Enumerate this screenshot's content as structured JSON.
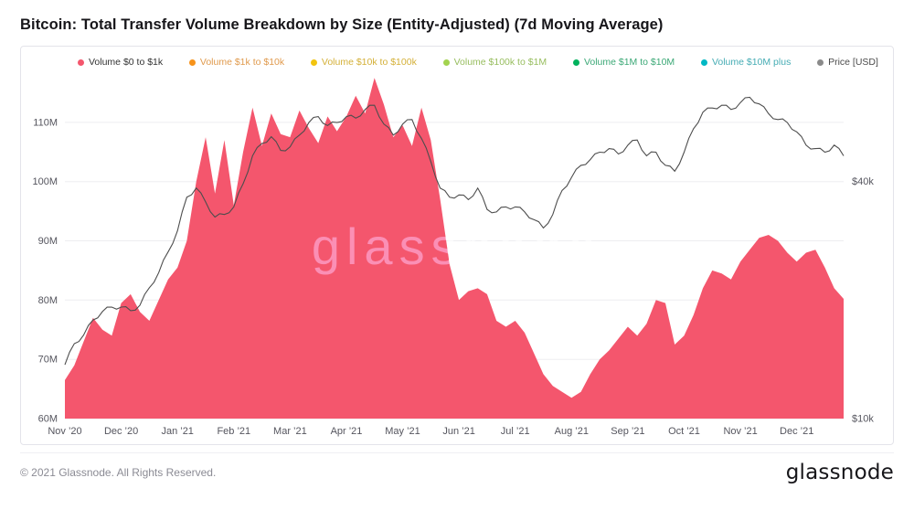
{
  "title": "Bitcoin: Total Transfer Volume Breakdown by Size (Entity-Adjusted) (7d Moving Average)",
  "watermark": "glassnode",
  "footer": {
    "copyright": "© 2021 Glassnode. All Rights Reserved.",
    "logo_text": "glassnode"
  },
  "chart_data": {
    "type": "area",
    "title": "Bitcoin: Total Transfer Volume Breakdown by Size (Entity-Adjusted) (7d Moving Average)",
    "x_range": "Nov 2020 - Dec 2021",
    "points_per_month": 6,
    "x_labels": [
      "Nov ’20",
      "Dec ’20",
      "Jan ’21",
      "Feb ’21",
      "Mar ’21",
      "Apr ’21",
      "May ’21",
      "Jun ’21",
      "Jul ’21",
      "Aug ’21",
      "Sep ’21",
      "Oct ’21",
      "Nov ’21",
      "Dec ’21"
    ],
    "y_axis_left": {
      "unit": "M",
      "min": 60,
      "max": 118,
      "ticks": [
        60,
        70,
        80,
        90,
        100,
        110
      ],
      "grid": true
    },
    "y_axis_right": {
      "label": "Price [USD]",
      "scale": "log",
      "ticks": [
        {
          "label": "$10k",
          "align_value": 60
        },
        {
          "label": "$40k",
          "align_value": 100
        }
      ]
    },
    "legend": [
      {
        "label": "Volume $0 to $1k",
        "color": "#f4566d",
        "text_color": "#333333"
      },
      {
        "label": "Volume $1k to $10k",
        "color": "#f7931a",
        "text_color": "#e09a4d"
      },
      {
        "label": "Volume $10k to $100k",
        "color": "#f2c40f",
        "text_color": "#d4b038"
      },
      {
        "label": "Volume $100k to $1M",
        "color": "#a3d34f",
        "text_color": "#97bd5e"
      },
      {
        "label": "Volume $1M to $10M",
        "color": "#00b25d",
        "text_color": "#3ba876"
      },
      {
        "label": "Volume $10M plus",
        "color": "#00b8c4",
        "text_color": "#45acb4"
      },
      {
        "label": "Price [USD]",
        "color": "#8a8a8a",
        "text_color": "#4a4a4a"
      }
    ],
    "series": [
      {
        "name": "Volume $0 to $1k",
        "type": "area",
        "color": "#f4566d",
        "unit": "M",
        "values": [
          66.5,
          69,
          73,
          77,
          75,
          74,
          79.5,
          81,
          78,
          76.5,
          80,
          83.5,
          85.5,
          90,
          100,
          107.5,
          98,
          107,
          96,
          105,
          112.5,
          106,
          111.5,
          108,
          107.5,
          112,
          109,
          106.5,
          111,
          108.5,
          111,
          114.5,
          111.5,
          117.5,
          113,
          107.5,
          109.5,
          106,
          112.5,
          107,
          97,
          86,
          80,
          81.5,
          82,
          81,
          76.5,
          75.5,
          76.5,
          74.5,
          71,
          67.5,
          65.5,
          64.5,
          63.5,
          64.5,
          67.5,
          70,
          71.5,
          73.5,
          75.5,
          74,
          76,
          80,
          79.5,
          72.5,
          74,
          77.5,
          82,
          85,
          84.5,
          83.5,
          86.5,
          88.5,
          90.5,
          91,
          90,
          88,
          86.5,
          88,
          88.5,
          85.5,
          82,
          80.2
        ]
      },
      {
        "name": "Price [USD]",
        "type": "line",
        "color": "#4d4d4d",
        "unit": "k USD",
        "values": [
          13.7,
          15.5,
          16.3,
          17.8,
          18.7,
          19.2,
          19.2,
          18.8,
          19.4,
          21.5,
          23.5,
          26.5,
          30,
          36.5,
          38.5,
          35.5,
          32.5,
          33,
          34.5,
          39.5,
          46.5,
          50,
          52,
          48,
          49,
          52.5,
          56.5,
          58.5,
          55.5,
          56.5,
          58.5,
          58,
          61,
          62.5,
          56,
          52.5,
          56,
          57.5,
          51.5,
          45,
          38.5,
          36.5,
          37,
          36,
          38.5,
          34,
          33.5,
          34.5,
          34.5,
          33.5,
          32,
          30.5,
          33,
          38,
          41,
          44,
          45.5,
          47.5,
          48.5,
          47,
          49.5,
          51,
          46.5,
          47.5,
          44,
          42.5,
          47.5,
          54.5,
          60,
          61.5,
          62.5,
          61,
          63.5,
          65.5,
          63,
          59.5,
          57.5,
          56.5,
          53.5,
          49.5,
          48.5,
          47.5,
          49.5,
          46.5
        ]
      }
    ]
  }
}
